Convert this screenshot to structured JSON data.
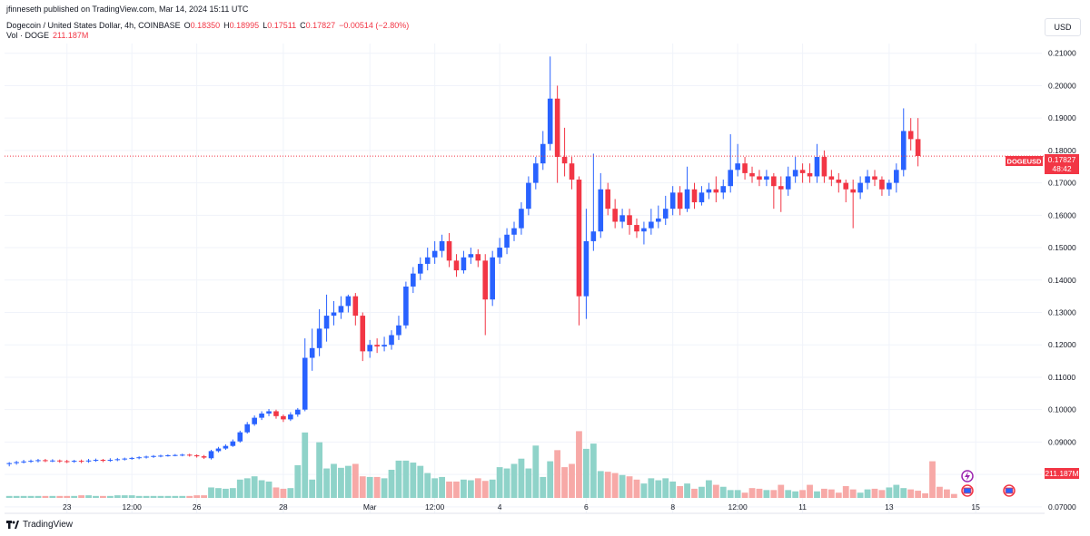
{
  "header": {
    "published": "jfinneseth published on TradingView.com, Mar 14, 2024 15:11 UTC",
    "symbol": "Dogecoin / United States Dollar, 4h, COINBASE",
    "open_label": "O",
    "open": "0.18350",
    "high_label": "H",
    "high": "0.18995",
    "low_label": "L",
    "low": "0.17511",
    "close_label": "C",
    "close": "0.17827",
    "change": "−0.00514 (−2.80%)",
    "volume_label": "Vol · DOGE",
    "volume": "211.187M"
  },
  "currency": "USD",
  "price_tag": {
    "symbol": "DOGEUSD",
    "price": "0.17827",
    "countdown": "48:42"
  },
  "volume_tag": "211.187M",
  "footer": {
    "brand": "TradingView"
  },
  "colors": {
    "up": "#2962ff",
    "down": "#f23645",
    "vol_up": "#8fd3c9",
    "vol_down": "#f7a9a7",
    "grid": "#f0f3fa"
  },
  "chart_data": {
    "type": "candlestick",
    "timeframe": "4h",
    "ylim": [
      0.068,
      0.213
    ],
    "y_ticks": [
      "0.21000",
      "0.20000",
      "0.19000",
      "0.18000",
      "0.17000",
      "0.16000",
      "0.15000",
      "0.14000",
      "0.13000",
      "0.12000",
      "0.11000",
      "0.10000",
      "0.09000",
      "0.08000",
      "0.07000"
    ],
    "x_ticks": [
      {
        "label": "23",
        "bar": 8
      },
      {
        "label": "12:00",
        "bar": 17
      },
      {
        "label": "26",
        "bar": 26
      },
      {
        "label": "28",
        "bar": 38
      },
      {
        "label": "Mar",
        "bar": 50
      },
      {
        "label": "12:00",
        "bar": 59
      },
      {
        "label": "4",
        "bar": 68
      },
      {
        "label": "6",
        "bar": 80
      },
      {
        "label": "8",
        "bar": 92
      },
      {
        "label": "12:00",
        "bar": 101
      },
      {
        "label": "11",
        "bar": 110
      },
      {
        "label": "13",
        "bar": 122
      },
      {
        "label": "15",
        "bar": 134
      }
    ],
    "candles": [
      [
        0.0832,
        0.0835,
        0.0825,
        0.0838
      ],
      [
        0.0835,
        0.0838,
        0.083,
        0.0842
      ],
      [
        0.0838,
        0.084,
        0.0834,
        0.0845
      ],
      [
        0.084,
        0.0842,
        0.0836,
        0.0846
      ],
      [
        0.0842,
        0.0844,
        0.0837,
        0.0848
      ],
      [
        0.0844,
        0.0842,
        0.0838,
        0.0848
      ],
      [
        0.0842,
        0.0843,
        0.0838,
        0.0847
      ],
      [
        0.0843,
        0.0841,
        0.0836,
        0.0846
      ],
      [
        0.0841,
        0.084,
        0.0835,
        0.0845
      ],
      [
        0.084,
        0.0842,
        0.0836,
        0.0845
      ],
      [
        0.0842,
        0.084,
        0.0835,
        0.0846
      ],
      [
        0.084,
        0.0843,
        0.0836,
        0.0848
      ],
      [
        0.0843,
        0.0845,
        0.0839,
        0.0849
      ],
      [
        0.0845,
        0.0843,
        0.0838,
        0.0848
      ],
      [
        0.0843,
        0.0845,
        0.0839,
        0.085
      ],
      [
        0.0845,
        0.0847,
        0.0841,
        0.0851
      ],
      [
        0.0847,
        0.0849,
        0.0843,
        0.0852
      ],
      [
        0.0849,
        0.0851,
        0.0845,
        0.0854
      ],
      [
        0.0851,
        0.0853,
        0.0847,
        0.0856
      ],
      [
        0.0853,
        0.0855,
        0.0849,
        0.0858
      ],
      [
        0.0855,
        0.0857,
        0.0851,
        0.086
      ],
      [
        0.0857,
        0.0858,
        0.0853,
        0.0861
      ],
      [
        0.0858,
        0.0859,
        0.0855,
        0.0862
      ],
      [
        0.0859,
        0.086,
        0.0856,
        0.0863
      ],
      [
        0.086,
        0.0861,
        0.0856,
        0.0864
      ],
      [
        0.0861,
        0.0859,
        0.0855,
        0.0864
      ],
      [
        0.0859,
        0.0856,
        0.0852,
        0.0862
      ],
      [
        0.0856,
        0.0852,
        0.0848,
        0.086
      ],
      [
        0.085,
        0.0872,
        0.0846,
        0.0876
      ],
      [
        0.0872,
        0.088,
        0.0868,
        0.0885
      ],
      [
        0.088,
        0.0888,
        0.0876,
        0.0893
      ],
      [
        0.0888,
        0.0902,
        0.0885,
        0.0908
      ],
      [
        0.0902,
        0.093,
        0.0898,
        0.0935
      ],
      [
        0.093,
        0.0955,
        0.0926,
        0.0962
      ],
      [
        0.0955,
        0.0975,
        0.095,
        0.0982
      ],
      [
        0.0975,
        0.0988,
        0.0968,
        0.0995
      ],
      [
        0.0988,
        0.0995,
        0.098,
        0.1002
      ],
      [
        0.0995,
        0.098,
        0.0972,
        0.1
      ],
      [
        0.098,
        0.097,
        0.0962,
        0.0985
      ],
      [
        0.097,
        0.0985,
        0.0965,
        0.0992
      ],
      [
        0.0985,
        0.1,
        0.0978,
        0.1005
      ],
      [
        0.1,
        0.116,
        0.0995,
        0.122
      ],
      [
        0.116,
        0.119,
        0.112,
        0.125
      ],
      [
        0.119,
        0.125,
        0.1165,
        0.131
      ],
      [
        0.125,
        0.129,
        0.121,
        0.1355
      ],
      [
        0.129,
        0.13,
        0.126,
        0.1335
      ],
      [
        0.13,
        0.132,
        0.128,
        0.135
      ],
      [
        0.132,
        0.135,
        0.13,
        0.1355
      ],
      [
        0.135,
        0.129,
        0.126,
        0.136
      ],
      [
        0.129,
        0.118,
        0.115,
        0.13
      ],
      [
        0.118,
        0.12,
        0.116,
        0.1215
      ],
      [
        0.12,
        0.1195,
        0.1175,
        0.122
      ],
      [
        0.1195,
        0.12,
        0.118,
        0.1225
      ],
      [
        0.12,
        0.123,
        0.1185,
        0.1245
      ],
      [
        0.123,
        0.126,
        0.1215,
        0.129
      ],
      [
        0.126,
        0.138,
        0.125,
        0.1395
      ],
      [
        0.138,
        0.142,
        0.136,
        0.144
      ],
      [
        0.142,
        0.145,
        0.14,
        0.147
      ],
      [
        0.145,
        0.147,
        0.143,
        0.15
      ],
      [
        0.147,
        0.149,
        0.145,
        0.152
      ],
      [
        0.149,
        0.152,
        0.147,
        0.154
      ],
      [
        0.152,
        0.146,
        0.144,
        0.1545
      ],
      [
        0.146,
        0.143,
        0.141,
        0.148
      ],
      [
        0.143,
        0.147,
        0.142,
        0.149
      ],
      [
        0.147,
        0.148,
        0.145,
        0.15
      ],
      [
        0.148,
        0.146,
        0.144,
        0.1495
      ],
      [
        0.146,
        0.134,
        0.123,
        0.148
      ],
      [
        0.134,
        0.147,
        0.132,
        0.149
      ],
      [
        0.147,
        0.15,
        0.145,
        0.153
      ],
      [
        0.15,
        0.154,
        0.148,
        0.156
      ],
      [
        0.154,
        0.156,
        0.152,
        0.158
      ],
      [
        0.156,
        0.162,
        0.154,
        0.164
      ],
      [
        0.162,
        0.17,
        0.16,
        0.172
      ],
      [
        0.17,
        0.176,
        0.168,
        0.178
      ],
      [
        0.176,
        0.182,
        0.174,
        0.186
      ],
      [
        0.182,
        0.196,
        0.18,
        0.209
      ],
      [
        0.196,
        0.178,
        0.17,
        0.2
      ],
      [
        0.178,
        0.176,
        0.172,
        0.187
      ],
      [
        0.176,
        0.171,
        0.168,
        0.178
      ],
      [
        0.171,
        0.135,
        0.126,
        0.172
      ],
      [
        0.135,
        0.152,
        0.128,
        0.162
      ],
      [
        0.152,
        0.155,
        0.149,
        0.179
      ],
      [
        0.155,
        0.168,
        0.153,
        0.173
      ],
      [
        0.168,
        0.162,
        0.16,
        0.17
      ],
      [
        0.162,
        0.158,
        0.156,
        0.165
      ],
      [
        0.158,
        0.16,
        0.156,
        0.162
      ],
      [
        0.16,
        0.157,
        0.154,
        0.162
      ],
      [
        0.157,
        0.155,
        0.153,
        0.159
      ],
      [
        0.155,
        0.156,
        0.151,
        0.158
      ],
      [
        0.156,
        0.158,
        0.154,
        0.162
      ],
      [
        0.158,
        0.159,
        0.156,
        0.163
      ],
      [
        0.159,
        0.162,
        0.157,
        0.166
      ],
      [
        0.162,
        0.167,
        0.16,
        0.169
      ],
      [
        0.167,
        0.162,
        0.16,
        0.169
      ],
      [
        0.162,
        0.168,
        0.161,
        0.175
      ],
      [
        0.168,
        0.164,
        0.162,
        0.17
      ],
      [
        0.164,
        0.167,
        0.163,
        0.169
      ],
      [
        0.167,
        0.168,
        0.165,
        0.17
      ],
      [
        0.168,
        0.167,
        0.164,
        0.172
      ],
      [
        0.167,
        0.169,
        0.165,
        0.171
      ],
      [
        0.169,
        0.174,
        0.167,
        0.185
      ],
      [
        0.174,
        0.176,
        0.172,
        0.182
      ],
      [
        0.176,
        0.173,
        0.171,
        0.178
      ],
      [
        0.173,
        0.172,
        0.17,
        0.175
      ],
      [
        0.172,
        0.171,
        0.169,
        0.174
      ],
      [
        0.171,
        0.172,
        0.169,
        0.174
      ],
      [
        0.172,
        0.169,
        0.162,
        0.173
      ],
      [
        0.169,
        0.168,
        0.161,
        0.172
      ],
      [
        0.168,
        0.172,
        0.166,
        0.175
      ],
      [
        0.172,
        0.174,
        0.17,
        0.178
      ],
      [
        0.174,
        0.173,
        0.17,
        0.176
      ],
      [
        0.173,
        0.172,
        0.17,
        0.176
      ],
      [
        0.172,
        0.178,
        0.17,
        0.182
      ],
      [
        0.178,
        0.172,
        0.17,
        0.18
      ],
      [
        0.172,
        0.171,
        0.169,
        0.174
      ],
      [
        0.171,
        0.17,
        0.167,
        0.173
      ],
      [
        0.17,
        0.168,
        0.164,
        0.171
      ],
      [
        0.168,
        0.167,
        0.156,
        0.171
      ],
      [
        0.167,
        0.17,
        0.165,
        0.172
      ],
      [
        0.17,
        0.172,
        0.168,
        0.174
      ],
      [
        0.172,
        0.171,
        0.169,
        0.174
      ],
      [
        0.171,
        0.168,
        0.166,
        0.172
      ],
      [
        0.168,
        0.17,
        0.166,
        0.171
      ],
      [
        0.17,
        0.174,
        0.167,
        0.176
      ],
      [
        0.174,
        0.186,
        0.172,
        0.193
      ],
      [
        0.186,
        0.1835,
        0.18,
        0.19
      ],
      [
        0.1835,
        0.1783,
        0.1751,
        0.19
      ]
    ],
    "volume": [
      3,
      3,
      3,
      3,
      3,
      3,
      3,
      3,
      3,
      3,
      4,
      4,
      3,
      3,
      3,
      4,
      4,
      4,
      3,
      3,
      3,
      3,
      3,
      3,
      3,
      3,
      4,
      4,
      16,
      15,
      14,
      15,
      28,
      30,
      33,
      27,
      25,
      16,
      14,
      15,
      50,
      100,
      28,
      85,
      45,
      52,
      46,
      49,
      52,
      33,
      32,
      32,
      30,
      43,
      57,
      57,
      54,
      49,
      38,
      30,
      32,
      25,
      25,
      28,
      27,
      30,
      26,
      28,
      47,
      45,
      52,
      60,
      45,
      80,
      32,
      56,
      73,
      47,
      52,
      102,
      75,
      83,
      41,
      40,
      38,
      35,
      33,
      28,
      22,
      30,
      27,
      30,
      25,
      18,
      22,
      14,
      17,
      27,
      20,
      17,
      12,
      12,
      8,
      15,
      14,
      12,
      12,
      20,
      12,
      10,
      12,
      20,
      10,
      14,
      13,
      8,
      18,
      13,
      8,
      13,
      14,
      12,
      16,
      20,
      15,
      13,
      11,
      7,
      56,
      17,
      13,
      6
    ],
    "volume_ylim": [
      0,
      140
    ],
    "last_price": 0.17827
  }
}
